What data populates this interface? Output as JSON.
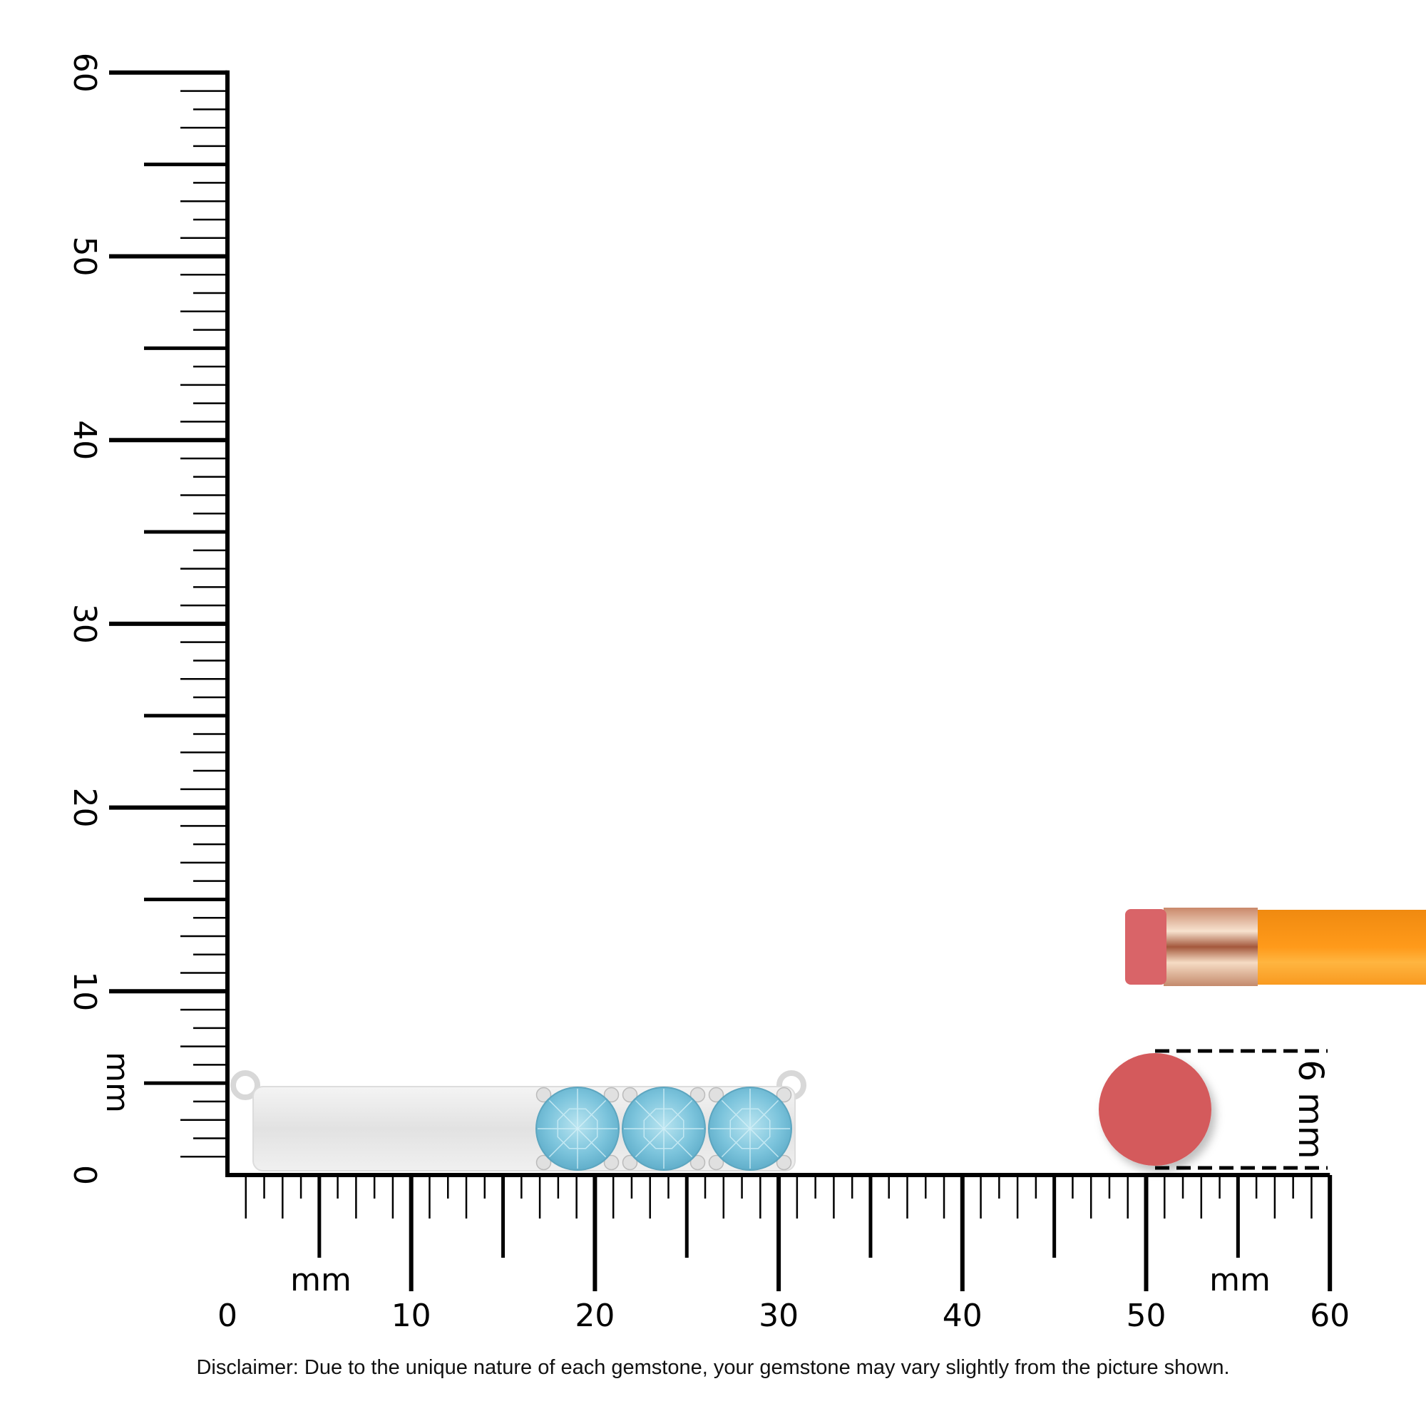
{
  "rulers": {
    "unit_label": "mm",
    "min": 0,
    "max": 60,
    "major_step": 10,
    "vertical_labels": [
      "0",
      "10",
      "20",
      "30",
      "40",
      "50",
      "60"
    ],
    "horizontal_labels": [
      "0",
      "10",
      "20",
      "30",
      "40",
      "50",
      "60"
    ]
  },
  "product": {
    "type": "bar pendant",
    "gem_count": 3,
    "gem_color": "#7cc4dc",
    "metal_color": "#e6e6e6"
  },
  "size_reference": {
    "label": "6 mm",
    "eraser_color": "#d45a5c",
    "pencil_color": "#f7901e"
  },
  "disclaimer": "Disclaimer: Due to the unique nature of each gemstone, your gemstone may vary slightly from the picture shown."
}
